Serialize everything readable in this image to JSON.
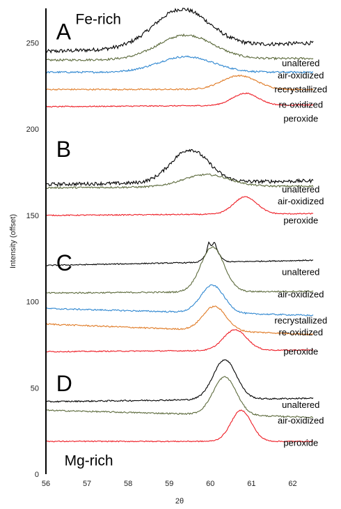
{
  "chart_data": {
    "type": "line",
    "xlabel": "2θ",
    "ylabel": "Intensity (offset)",
    "xlim": [
      56,
      62.5
    ],
    "ylim": [
      0,
      270
    ],
    "xticks": [
      "56",
      "57",
      "58",
      "59",
      "60",
      "61",
      "62"
    ],
    "yticks": [
      "0",
      "50",
      "100",
      "150",
      "200",
      "250"
    ],
    "annotations": {
      "top": "Fe-rich",
      "bottom": "Mg-rich"
    },
    "colors": {
      "unaltered": "#000000",
      "air-oxidized": "#5c6a3c",
      "recrystallized": "#2d86d0",
      "re-oxidized": "#e07b26",
      "peroxide": "#ee1c24"
    },
    "panels": [
      {
        "letter": "A",
        "series": [
          {
            "name": "unaltered",
            "color_key": "unaltered",
            "base": 245,
            "peak_x": 59.3,
            "height": 22,
            "width": 0.95,
            "end": 250,
            "noise": 1.1,
            "label_y": 238
          },
          {
            "name": "air-oxidized",
            "color_key": "air-oxidized",
            "base": 240,
            "peak_x": 59.4,
            "height": 14,
            "width": 0.95,
            "end": 241,
            "noise": 0.6,
            "label_y": 231
          },
          {
            "name": "recrystallized",
            "color_key": "recrystallized",
            "base": 233,
            "peak_x": 59.4,
            "height": 9,
            "width": 0.95,
            "end": 233,
            "noise": 0.5,
            "label_y": 223
          },
          {
            "name": "re-oxidized",
            "color_key": "re-oxidized",
            "base": 223,
            "peak_x": 60.7,
            "height": 8,
            "width": 0.6,
            "end": 223,
            "noise": 0.4,
            "label_y": 214
          },
          {
            "name": "peroxide",
            "color_key": "peroxide",
            "base": 213,
            "peak_x": 60.85,
            "height": 7,
            "width": 0.45,
            "end": 214,
            "noise": 0.3,
            "label_y": 206
          }
        ]
      },
      {
        "letter": "B",
        "series": [
          {
            "name": "unaltered",
            "color_key": "unaltered",
            "base": 168,
            "peak_x": 59.5,
            "height": 19,
            "width": 0.65,
            "end": 170,
            "noise": 1.0,
            "label_y": 165
          },
          {
            "name": "air-oxidized",
            "color_key": "air-oxidized",
            "base": 166,
            "peak_x": 59.9,
            "height": 7,
            "width": 0.8,
            "end": 167,
            "noise": 0.5,
            "label_y": 158
          },
          {
            "name": "peroxide",
            "color_key": "peroxide",
            "base": 150,
            "peak_x": 60.85,
            "height": 10,
            "width": 0.4,
            "end": 151,
            "noise": 0.3,
            "label_y": 147
          }
        ]
      },
      {
        "letter": "C",
        "series": [
          {
            "name": "unaltered",
            "color_key": "unaltered",
            "base": 121,
            "peak_x": 60.05,
            "height": 9,
            "width": 0.2,
            "end": 124,
            "noise": 0.3,
            "label_y": 117
          },
          {
            "name": "air-oxidized",
            "color_key": "air-oxidized",
            "base": 105,
            "peak_x": 60.05,
            "height": 26,
            "width": 0.4,
            "end": 106,
            "noise": 0.4,
            "label_y": 104
          },
          {
            "name": "recrystallized",
            "color_key": "recrystallized",
            "base": 96,
            "peak_x": 60.05,
            "height": 16,
            "width": 0.4,
            "end": 92,
            "noise": 0.4,
            "label_y": 89
          },
          {
            "name": "re-oxidized",
            "color_key": "re-oxidized",
            "base": 87,
            "peak_x": 60.1,
            "height": 14,
            "width": 0.4,
            "end": 81,
            "noise": 0.4,
            "label_y": 82
          },
          {
            "name": "peroxide",
            "color_key": "peroxide",
            "base": 71,
            "peak_x": 60.6,
            "height": 12,
            "width": 0.4,
            "end": 72,
            "noise": 0.3,
            "label_y": 71
          }
        ]
      },
      {
        "letter": "D",
        "series": [
          {
            "name": "unaltered",
            "color_key": "unaltered",
            "base": 42,
            "peak_x": 60.35,
            "height": 23,
            "width": 0.4,
            "end": 44,
            "noise": 0.4,
            "label_y": 40
          },
          {
            "name": "air-oxidized",
            "color_key": "air-oxidized",
            "base": 37,
            "peak_x": 60.35,
            "height": 22,
            "width": 0.4,
            "end": 33,
            "noise": 0.4,
            "label_y": 31
          },
          {
            "name": "peroxide",
            "color_key": "peroxide",
            "base": 19,
            "peak_x": 60.75,
            "height": 18,
            "width": 0.35,
            "end": 19,
            "noise": 0.3,
            "label_y": 18
          }
        ]
      }
    ]
  }
}
